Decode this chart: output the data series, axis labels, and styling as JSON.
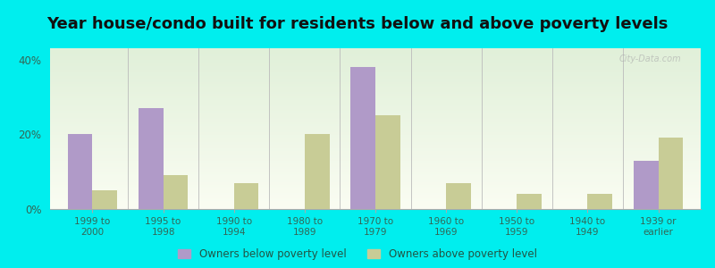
{
  "title": "Year house/condo built for residents below and above poverty levels",
  "categories": [
    "1999 to\n2000",
    "1995 to\n1998",
    "1990 to\n1994",
    "1980 to\n1989",
    "1970 to\n1979",
    "1960 to\n1969",
    "1950 to\n1959",
    "1940 to\n1949",
    "1939 or\nearlier"
  ],
  "below_poverty": [
    20.0,
    27.0,
    0.0,
    0.0,
    38.0,
    0.0,
    0.0,
    0.0,
    13.0
  ],
  "above_poverty": [
    5.0,
    9.0,
    7.0,
    20.0,
    25.0,
    7.0,
    4.0,
    4.0,
    19.0
  ],
  "below_color": "#b09ac8",
  "above_color": "#c8cc96",
  "bg_color": "#00eeee",
  "ylabel_ticks": [
    "0%",
    "20%",
    "40%"
  ],
  "ytick_vals": [
    0,
    20,
    40
  ],
  "ylim": [
    0,
    43
  ],
  "legend_below": "Owners below poverty level",
  "legend_above": "Owners above poverty level",
  "title_fontsize": 13,
  "bar_width": 0.35,
  "watermark": "City-Data.com"
}
